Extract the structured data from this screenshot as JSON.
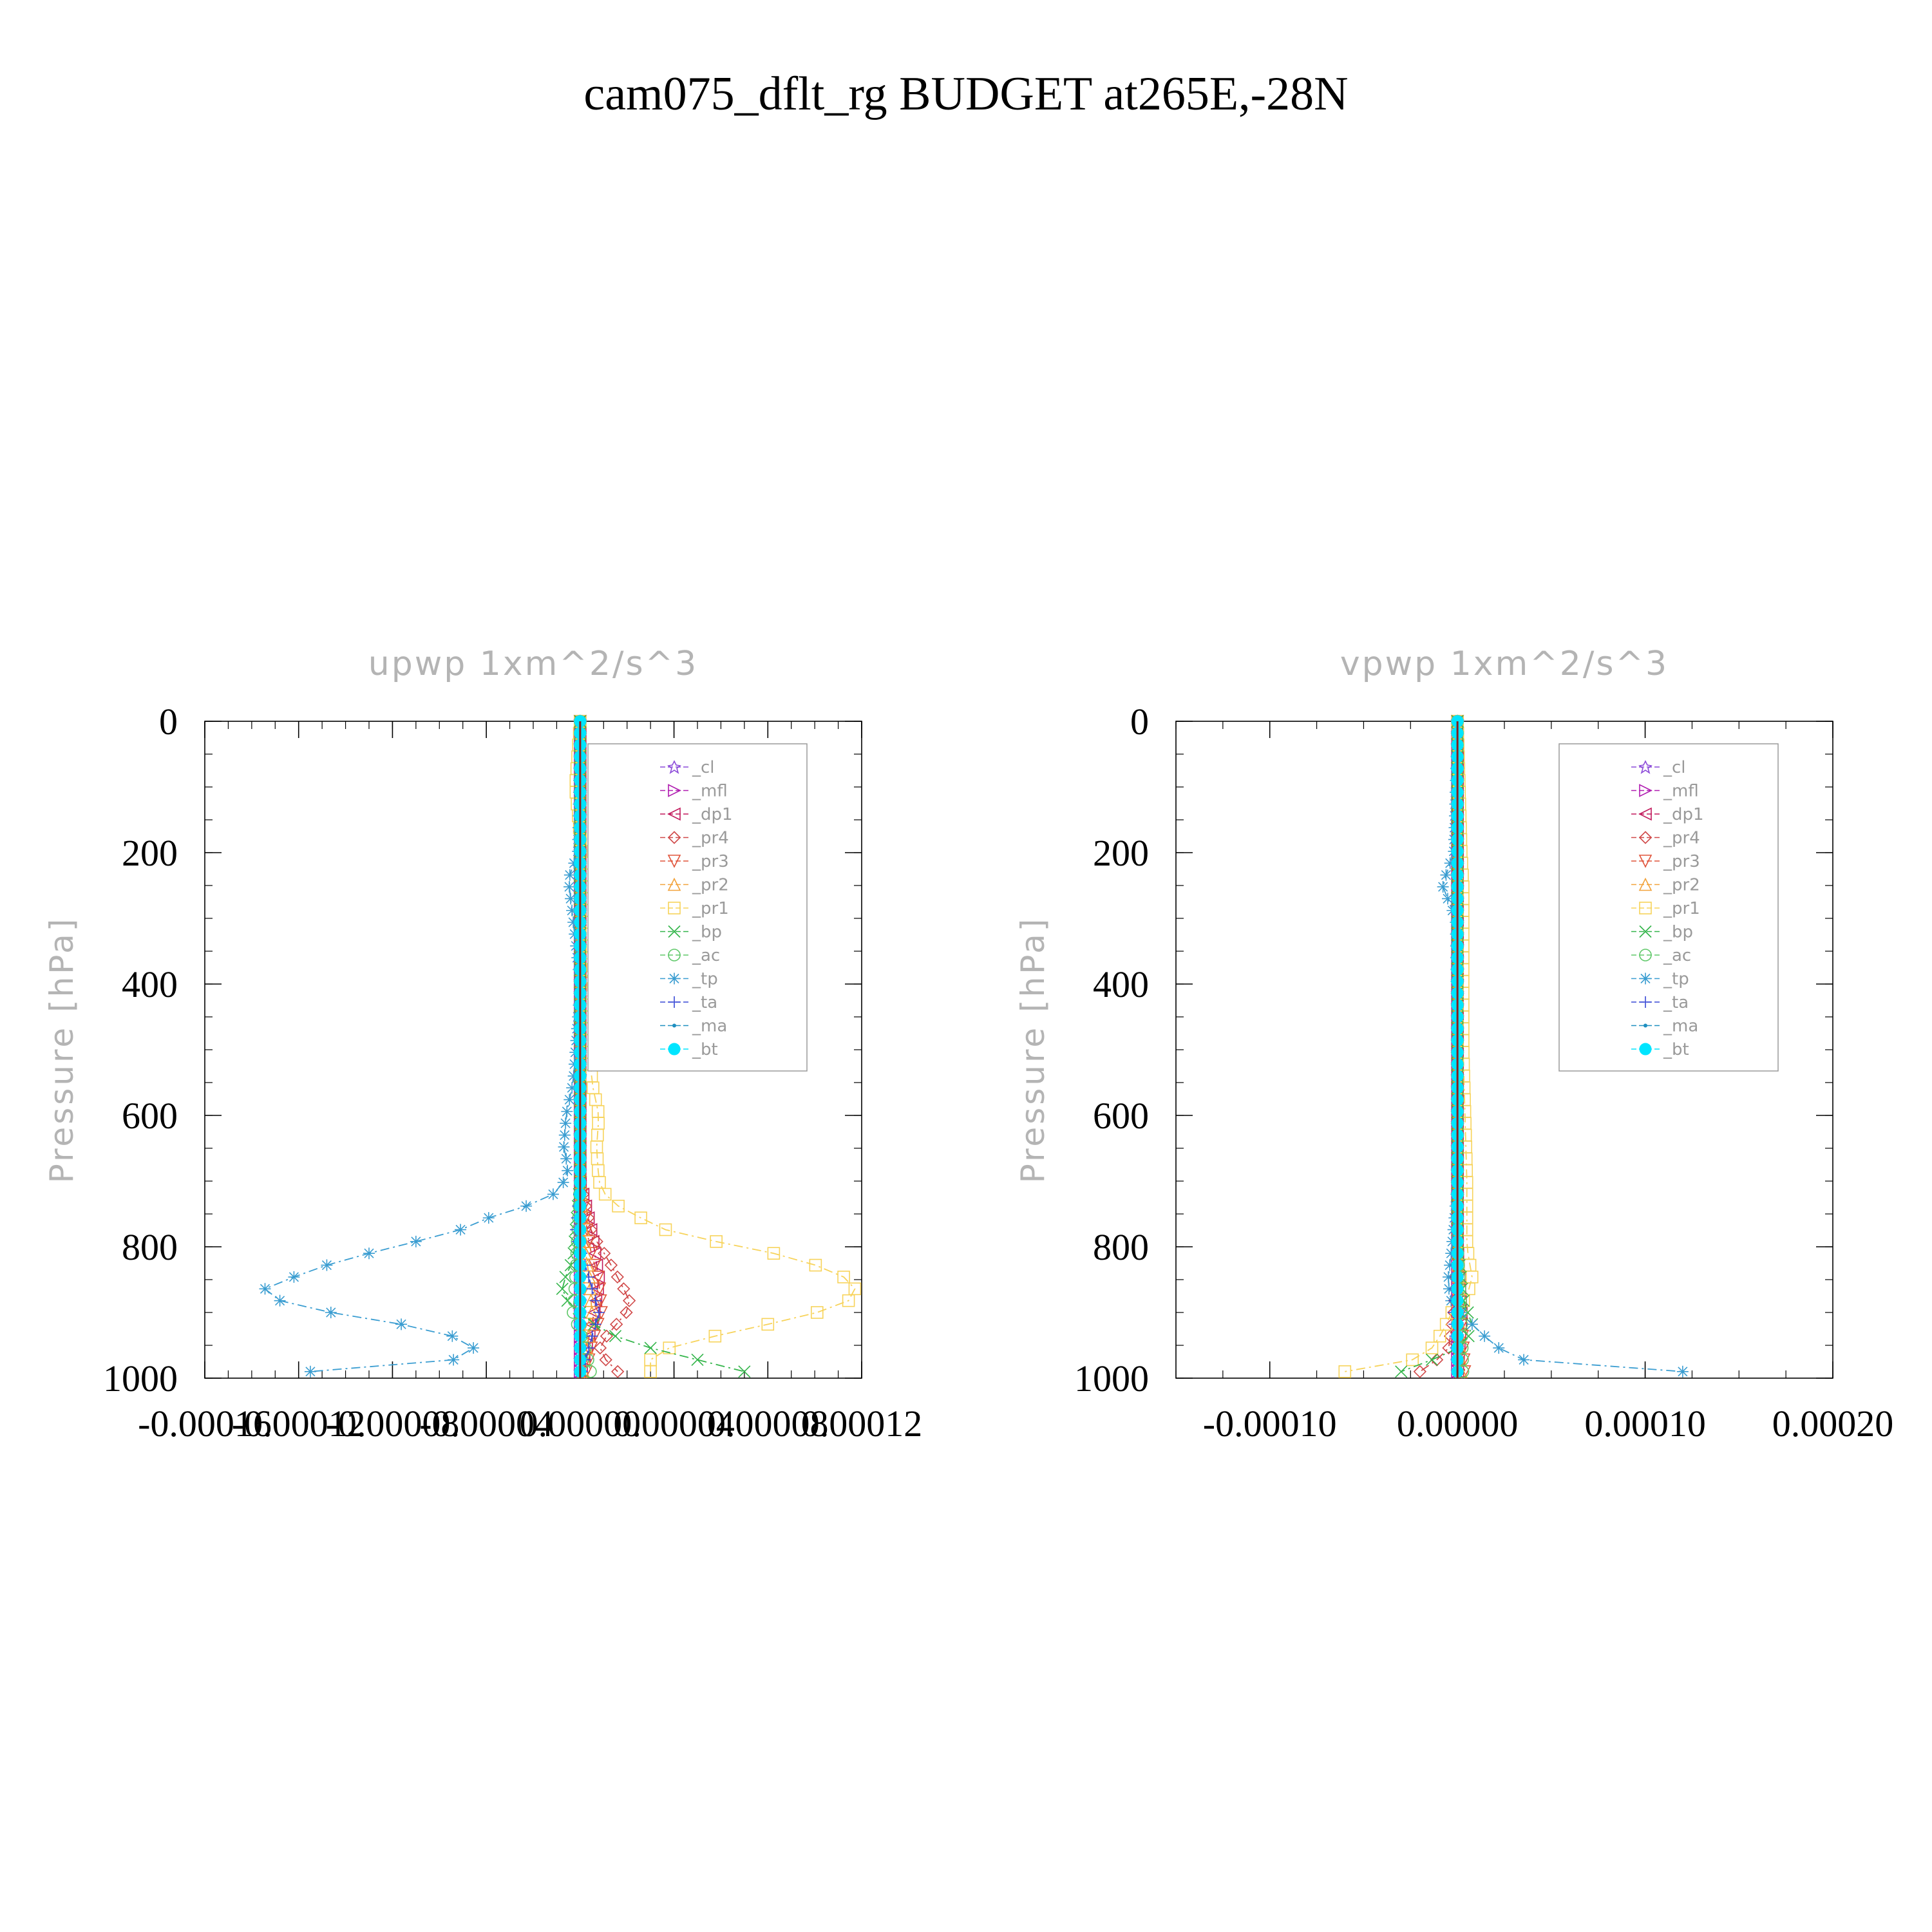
{
  "figure": {
    "title": "cam075_dflt_rg  BUDGET at265E,-28N"
  },
  "chart_data": [
    {
      "type": "line",
      "title": "upwp    1xm^2/s^3",
      "ylabel": "Pressure [hPa]",
      "xlabel": "",
      "xlim": [
        -0.00016,
        0.00012
      ],
      "ylim": [
        0,
        1000
      ],
      "y_inverted": true,
      "xticks": [
        -0.00016,
        -0.00012,
        -8e-05,
        -4e-05,
        0.0,
        4e-05,
        8e-05,
        0.00012
      ],
      "xtick_labels": [
        "-0.00016",
        "-0.00012",
        "-0.00008",
        "-0.00004",
        "0.00000",
        "0.00004",
        "0.00008",
        "0.00012"
      ],
      "yticks": [
        0,
        200,
        400,
        600,
        800,
        1000
      ],
      "ytick_labels": [
        "0",
        "200",
        "400",
        "600",
        "800",
        "1000"
      ],
      "legend_position": "top-right",
      "series": [
        {
          "name": "_cl",
          "color": "#8c4bd9",
          "marker": "star",
          "y": [
            0,
            500,
            800,
            900,
            1000
          ],
          "x": [
            0,
            0,
            0,
            0,
            0
          ]
        },
        {
          "name": "_mfl",
          "color": "#b01bb0",
          "marker": "tri-right",
          "y": [
            0,
            500,
            800,
            900,
            1000
          ],
          "x": [
            0,
            0,
            0,
            0,
            0
          ]
        },
        {
          "name": "_dp1",
          "color": "#c2185b",
          "marker": "tri-left",
          "y": [
            0,
            700,
            780,
            850,
            900,
            950,
            1000
          ],
          "x": [
            0,
            0,
            5e-06,
            8e-06,
            6e-06,
            3e-06,
            0
          ]
        },
        {
          "name": "_pr4",
          "color": "#d04848",
          "marker": "diamond",
          "y": [
            0,
            700,
            780,
            820,
            860,
            890,
            920,
            950,
            980,
            1000
          ],
          "x": [
            0,
            0,
            5e-06,
            1.2e-05,
            1.8e-05,
            2.2e-05,
            1.5e-05,
            8e-06,
            1.2e-05,
            2e-05
          ]
        },
        {
          "name": "_pr3",
          "color": "#e0533a",
          "marker": "tri-down",
          "y": [
            0,
            700,
            800,
            850,
            900,
            950,
            1000
          ],
          "x": [
            0,
            0,
            4e-06,
            8e-06,
            9e-06,
            5e-06,
            2e-06
          ]
        },
        {
          "name": "_pr2",
          "color": "#f2a23a",
          "marker": "tri-up",
          "y": [
            0,
            700,
            800,
            850,
            900,
            950,
            1000
          ],
          "x": [
            0,
            0,
            2e-06,
            4e-06,
            5e-06,
            3e-06,
            1e-06
          ]
        },
        {
          "name": "_pr1",
          "color": "#f7d35a",
          "marker": "square",
          "y": [
            0,
            100,
            250,
            400,
            550,
            600,
            650,
            700,
            730,
            760,
            780,
            800,
            820,
            850,
            870,
            890,
            910,
            930,
            950,
            970,
            990,
            1000
          ],
          "x": [
            0,
            -2e-06,
            2e-06,
            3e-06,
            5e-06,
            8e-06,
            7e-06,
            8e-06,
            1.2e-05,
            2.8e-05,
            4e-05,
            7e-05,
            9.5e-05,
            0.000115,
            0.000118,
            0.000112,
            9e-05,
            6.5e-05,
            4e-05,
            3e-05,
            3e-05,
            3e-05
          ]
        },
        {
          "name": "_bp",
          "color": "#33b54a",
          "marker": "x",
          "y": [
            0,
            700,
            820,
            860,
            880,
            900,
            930,
            960,
            980,
            990,
            1000
          ],
          "x": [
            0,
            0,
            -3e-06,
            -8e-06,
            -6e-06,
            0,
            1e-05,
            3.5e-05,
            6e-05,
            7e-05,
            8e-05
          ]
        },
        {
          "name": "_ac",
          "color": "#60c86a",
          "marker": "circle",
          "y": [
            0,
            700,
            850,
            900,
            950,
            1000
          ],
          "x": [
            0,
            0,
            -2e-06,
            -3e-06,
            2e-06,
            5e-06
          ]
        },
        {
          "name": "_tp",
          "color": "#3a9dd1",
          "marker": "asterisk",
          "y": [
            0,
            200,
            240,
            400,
            550,
            600,
            650,
            680,
            710,
            730,
            750,
            780,
            800,
            830,
            850,
            865,
            880,
            895,
            915,
            935,
            955,
            970,
            985,
            995,
            1000
          ],
          "x": [
            0,
            -1e-06,
            -5e-06,
            0,
            -3e-06,
            -6e-06,
            -7e-06,
            -5e-06,
            -8e-06,
            -1.5e-05,
            -3.5e-05,
            -5.5e-05,
            -8e-05,
            -0.00011,
            -0.000125,
            -0.000135,
            -0.00013,
            -0.000115,
            -8e-05,
            -5.5e-05,
            -4.5e-05,
            -5e-05,
            -8e-05,
            -0.00015,
            0
          ]
        },
        {
          "name": "_ta",
          "color": "#3949d6",
          "marker": "plus",
          "y": [
            0,
            700,
            780,
            850,
            900,
            950,
            1000
          ],
          "x": [
            0,
            0,
            -2e-06,
            4e-06,
            8e-06,
            4e-06,
            0
          ]
        },
        {
          "name": "_ma",
          "color": "#1f8fc0",
          "marker": "dot",
          "y": [
            0,
            500,
            900,
            1000
          ],
          "x": [
            0,
            0,
            0,
            0
          ]
        },
        {
          "name": "_bt",
          "color": "#00e5ff",
          "marker": "filled-circle",
          "y": [
            0,
            500,
            900,
            1000
          ],
          "x": [
            0,
            0,
            0,
            0
          ]
        }
      ]
    },
    {
      "type": "line",
      "title": "vpwp    1xm^2/s^3",
      "ylabel": "Pressure [hPa]",
      "xlabel": "",
      "xlim": [
        -0.00015,
        0.0002
      ],
      "ylim": [
        0,
        1000
      ],
      "y_inverted": true,
      "xticks": [
        -0.0001,
        0.0,
        0.0001,
        0.0002
      ],
      "xtick_labels": [
        "-0.00010",
        "0.00000",
        "0.00010",
        "0.00020"
      ],
      "yticks": [
        0,
        200,
        400,
        600,
        800,
        1000
      ],
      "ytick_labels": [
        "0",
        "200",
        "400",
        "600",
        "800",
        "1000"
      ],
      "legend_position": "top-right",
      "series": [
        {
          "name": "_cl",
          "color": "#8c4bd9",
          "marker": "star",
          "y": [
            0,
            500,
            900,
            1000
          ],
          "x": [
            0,
            0,
            0,
            0
          ]
        },
        {
          "name": "_mfl",
          "color": "#b01bb0",
          "marker": "tri-right",
          "y": [
            0,
            500,
            900,
            1000
          ],
          "x": [
            0,
            0,
            0,
            0
          ]
        },
        {
          "name": "_dp1",
          "color": "#c2185b",
          "marker": "tri-left",
          "y": [
            0,
            800,
            900,
            1000
          ],
          "x": [
            0,
            0,
            2e-06,
            0
          ]
        },
        {
          "name": "_pr4",
          "color": "#d04848",
          "marker": "diamond",
          "y": [
            0,
            800,
            900,
            960,
            990,
            1000
          ],
          "x": [
            0,
            0,
            -2e-06,
            -5e-06,
            -2e-05,
            -2.5e-05
          ]
        },
        {
          "name": "_pr3",
          "color": "#e0533a",
          "marker": "tri-down",
          "y": [
            0,
            800,
            900,
            1000
          ],
          "x": [
            0,
            0,
            2e-06,
            4e-06
          ]
        },
        {
          "name": "_pr2",
          "color": "#f2a23a",
          "marker": "tri-up",
          "y": [
            0,
            800,
            900,
            1000
          ],
          "x": [
            0,
            0,
            1e-06,
            2e-06
          ]
        },
        {
          "name": "_pr1",
          "color": "#f7d35a",
          "marker": "square",
          "y": [
            0,
            200,
            250,
            500,
            700,
            800,
            850,
            880,
            900,
            930,
            960,
            980,
            990,
            1000
          ],
          "x": [
            0,
            2e-06,
            3e-06,
            3e-06,
            5e-06,
            5e-06,
            8e-06,
            4e-06,
            -3e-06,
            -8e-06,
            -1.5e-05,
            -3e-05,
            -6e-05,
            -0.00012
          ]
        },
        {
          "name": "_bp",
          "color": "#33b54a",
          "marker": "x",
          "y": [
            0,
            800,
            880,
            920,
            950,
            980,
            1000
          ],
          "x": [
            0,
            0,
            3e-06,
            8e-06,
            4e-06,
            -2e-05,
            -4e-05
          ]
        },
        {
          "name": "_ac",
          "color": "#60c86a",
          "marker": "circle",
          "y": [
            0,
            800,
            900,
            1000
          ],
          "x": [
            0,
            0,
            2e-06,
            3e-06
          ]
        },
        {
          "name": "_tp",
          "color": "#3a9dd1",
          "marker": "asterisk",
          "y": [
            0,
            200,
            250,
            300,
            500,
            700,
            800,
            850,
            880,
            910,
            930,
            950,
            970,
            985,
            995,
            1000
          ],
          "x": [
            0,
            -2e-06,
            -8e-06,
            -1e-06,
            0,
            0,
            -3e-06,
            -5e-06,
            -4e-06,
            5e-06,
            1.2e-05,
            2e-05,
            3e-05,
            7e-05,
            0.00017,
            0
          ]
        },
        {
          "name": "_ta",
          "color": "#3949d6",
          "marker": "plus",
          "y": [
            0,
            800,
            900,
            1000
          ],
          "x": [
            0,
            0,
            -2e-06,
            0
          ]
        },
        {
          "name": "_ma",
          "color": "#1f8fc0",
          "marker": "dot",
          "y": [
            0,
            500,
            900,
            1000
          ],
          "x": [
            0,
            0,
            0,
            0
          ]
        },
        {
          "name": "_bt",
          "color": "#00e5ff",
          "marker": "filled-circle",
          "y": [
            0,
            500,
            900,
            1000
          ],
          "x": [
            0,
            0,
            0,
            0
          ]
        }
      ]
    }
  ]
}
